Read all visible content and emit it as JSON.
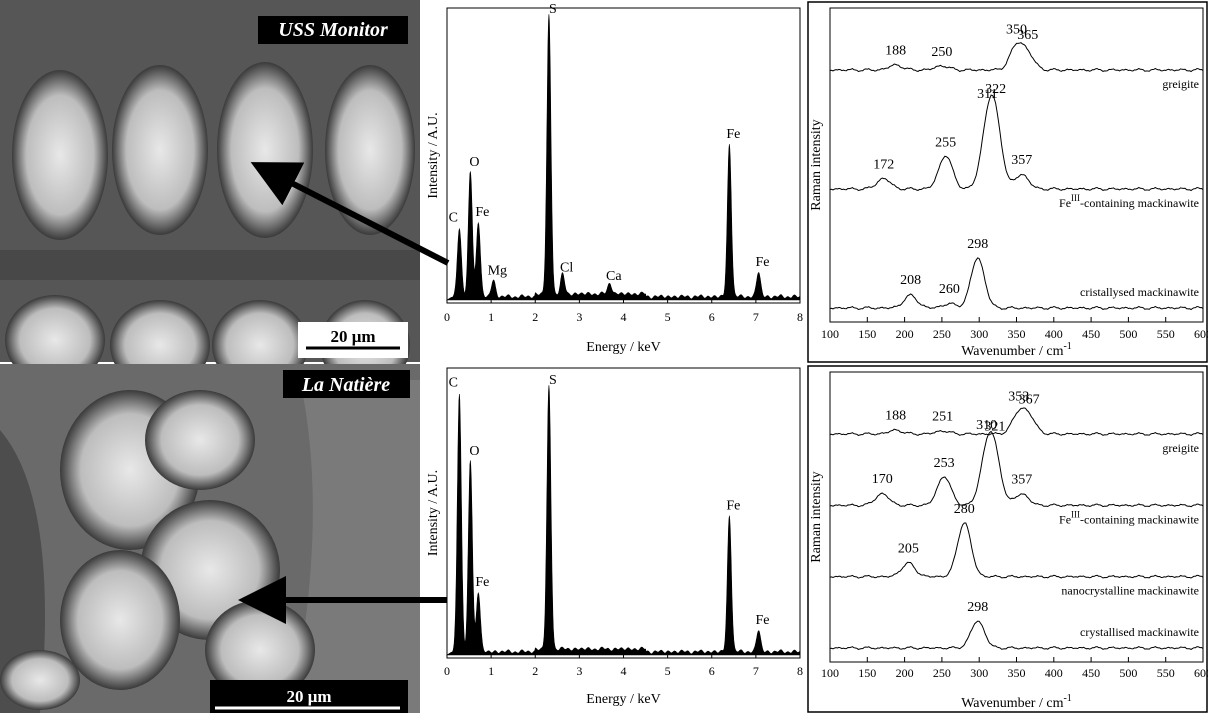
{
  "sem": [
    {
      "label": "USS Monitor",
      "scale": "20 μm"
    },
    {
      "label": "La Natière",
      "scale": "20 μm"
    }
  ],
  "chart_data": [
    {
      "type": "eds",
      "xlabel": "Energy / keV",
      "ylabel": "Intensity / A.U.",
      "xlim": [
        0,
        8
      ],
      "ylim": [
        0,
        1
      ],
      "xticks": [
        0,
        1,
        2,
        3,
        4,
        5,
        6,
        7,
        8
      ],
      "peaks": [
        {
          "label": "C",
          "x": 0.28,
          "height": 0.25
        },
        {
          "label": "O",
          "x": 0.53,
          "height": 0.45
        },
        {
          "label": "Fe",
          "x": 0.71,
          "height": 0.27
        },
        {
          "label": "Mg",
          "x": 1.05,
          "height": 0.06
        },
        {
          "label": "S",
          "x": 2.31,
          "height": 1.0
        },
        {
          "label": "Cl",
          "x": 2.62,
          "height": 0.07
        },
        {
          "label": "Ca",
          "x": 3.69,
          "height": 0.04
        },
        {
          "label": "Fe",
          "x": 6.4,
          "height": 0.55
        },
        {
          "label": "Fe",
          "x": 7.06,
          "height": 0.09
        }
      ]
    },
    {
      "type": "raman",
      "xlabel": "Wavenumber / cm",
      "xlabel_sup": "-1",
      "ylabel": "Raman intensity",
      "xlim": [
        100,
        600
      ],
      "ylim": [
        0,
        4.5
      ],
      "xticks": [
        100,
        150,
        200,
        250,
        300,
        350,
        400,
        450,
        500,
        550,
        600
      ],
      "series": [
        {
          "name": "greigite",
          "peaks": [
            {
              "x": 188,
              "height": 0.12
            },
            {
              "x": 250,
              "height": 0.1
            },
            {
              "x": 350,
              "height": 0.55
            },
            {
              "x": 365,
              "height": 0.35
            }
          ]
        },
        {
          "name": "Fe",
          "name_sup": "III",
          "name_rest": "-containing mackinawite",
          "peaks": [
            {
              "x": 172,
              "height": 0.25
            },
            {
              "x": 255,
              "height": 0.8
            },
            {
              "x": 311,
              "height": 1.3
            },
            {
              "x": 322,
              "height": 1.4
            },
            {
              "x": 357,
              "height": 0.35
            }
          ]
        },
        {
          "name": "cristallysed mackinawite",
          "peaks": [
            {
              "x": 208,
              "height": 0.3
            },
            {
              "x": 260,
              "height": 0.1
            },
            {
              "x": 298,
              "height": 1.2
            }
          ]
        }
      ]
    },
    {
      "type": "eds",
      "xlabel": "Energy / keV",
      "ylabel": "Intensity / A.U.",
      "xlim": [
        0,
        8
      ],
      "ylim": [
        0,
        1
      ],
      "xticks": [
        0,
        1,
        2,
        3,
        4,
        5,
        6,
        7,
        8
      ],
      "peaks": [
        {
          "label": "C",
          "x": 0.28,
          "height": 0.95
        },
        {
          "label": "O",
          "x": 0.53,
          "height": 0.7
        },
        {
          "label": "Fe",
          "x": 0.71,
          "height": 0.22
        },
        {
          "label": "S",
          "x": 2.31,
          "height": 0.96
        },
        {
          "label": "Fe",
          "x": 6.4,
          "height": 0.5
        },
        {
          "label": "Fe",
          "x": 7.06,
          "height": 0.08
        }
      ]
    },
    {
      "type": "raman",
      "xlabel": "Wavenumber / cm",
      "xlabel_sup": "-1",
      "ylabel": "Raman intensity",
      "xlim": [
        100,
        600
      ],
      "ylim": [
        0,
        4.5
      ],
      "xticks": [
        100,
        150,
        200,
        250,
        300,
        350,
        400,
        450,
        500,
        550,
        600
      ],
      "series": [
        {
          "name": "greigite",
          "peaks": [
            {
              "x": 188,
              "height": 0.1
            },
            {
              "x": 251,
              "height": 0.08
            },
            {
              "x": 353,
              "height": 0.5
            },
            {
              "x": 367,
              "height": 0.4
            }
          ]
        },
        {
          "name": "Fe",
          "name_sup": "III",
          "name_rest": "-containing mackinawite",
          "peaks": [
            {
              "x": 170,
              "height": 0.3
            },
            {
              "x": 253,
              "height": 0.75
            },
            {
              "x": 310,
              "height": 1.2
            },
            {
              "x": 321,
              "height": 1.1
            },
            {
              "x": 357,
              "height": 0.3
            }
          ]
        },
        {
          "name": "nanocrystalline mackinawite",
          "peaks": [
            {
              "x": 205,
              "height": 0.35
            },
            {
              "x": 280,
              "height": 1.4
            }
          ]
        },
        {
          "name": "crystallised mackinawite",
          "peaks": [
            {
              "x": 298,
              "height": 0.7
            }
          ]
        }
      ]
    }
  ]
}
